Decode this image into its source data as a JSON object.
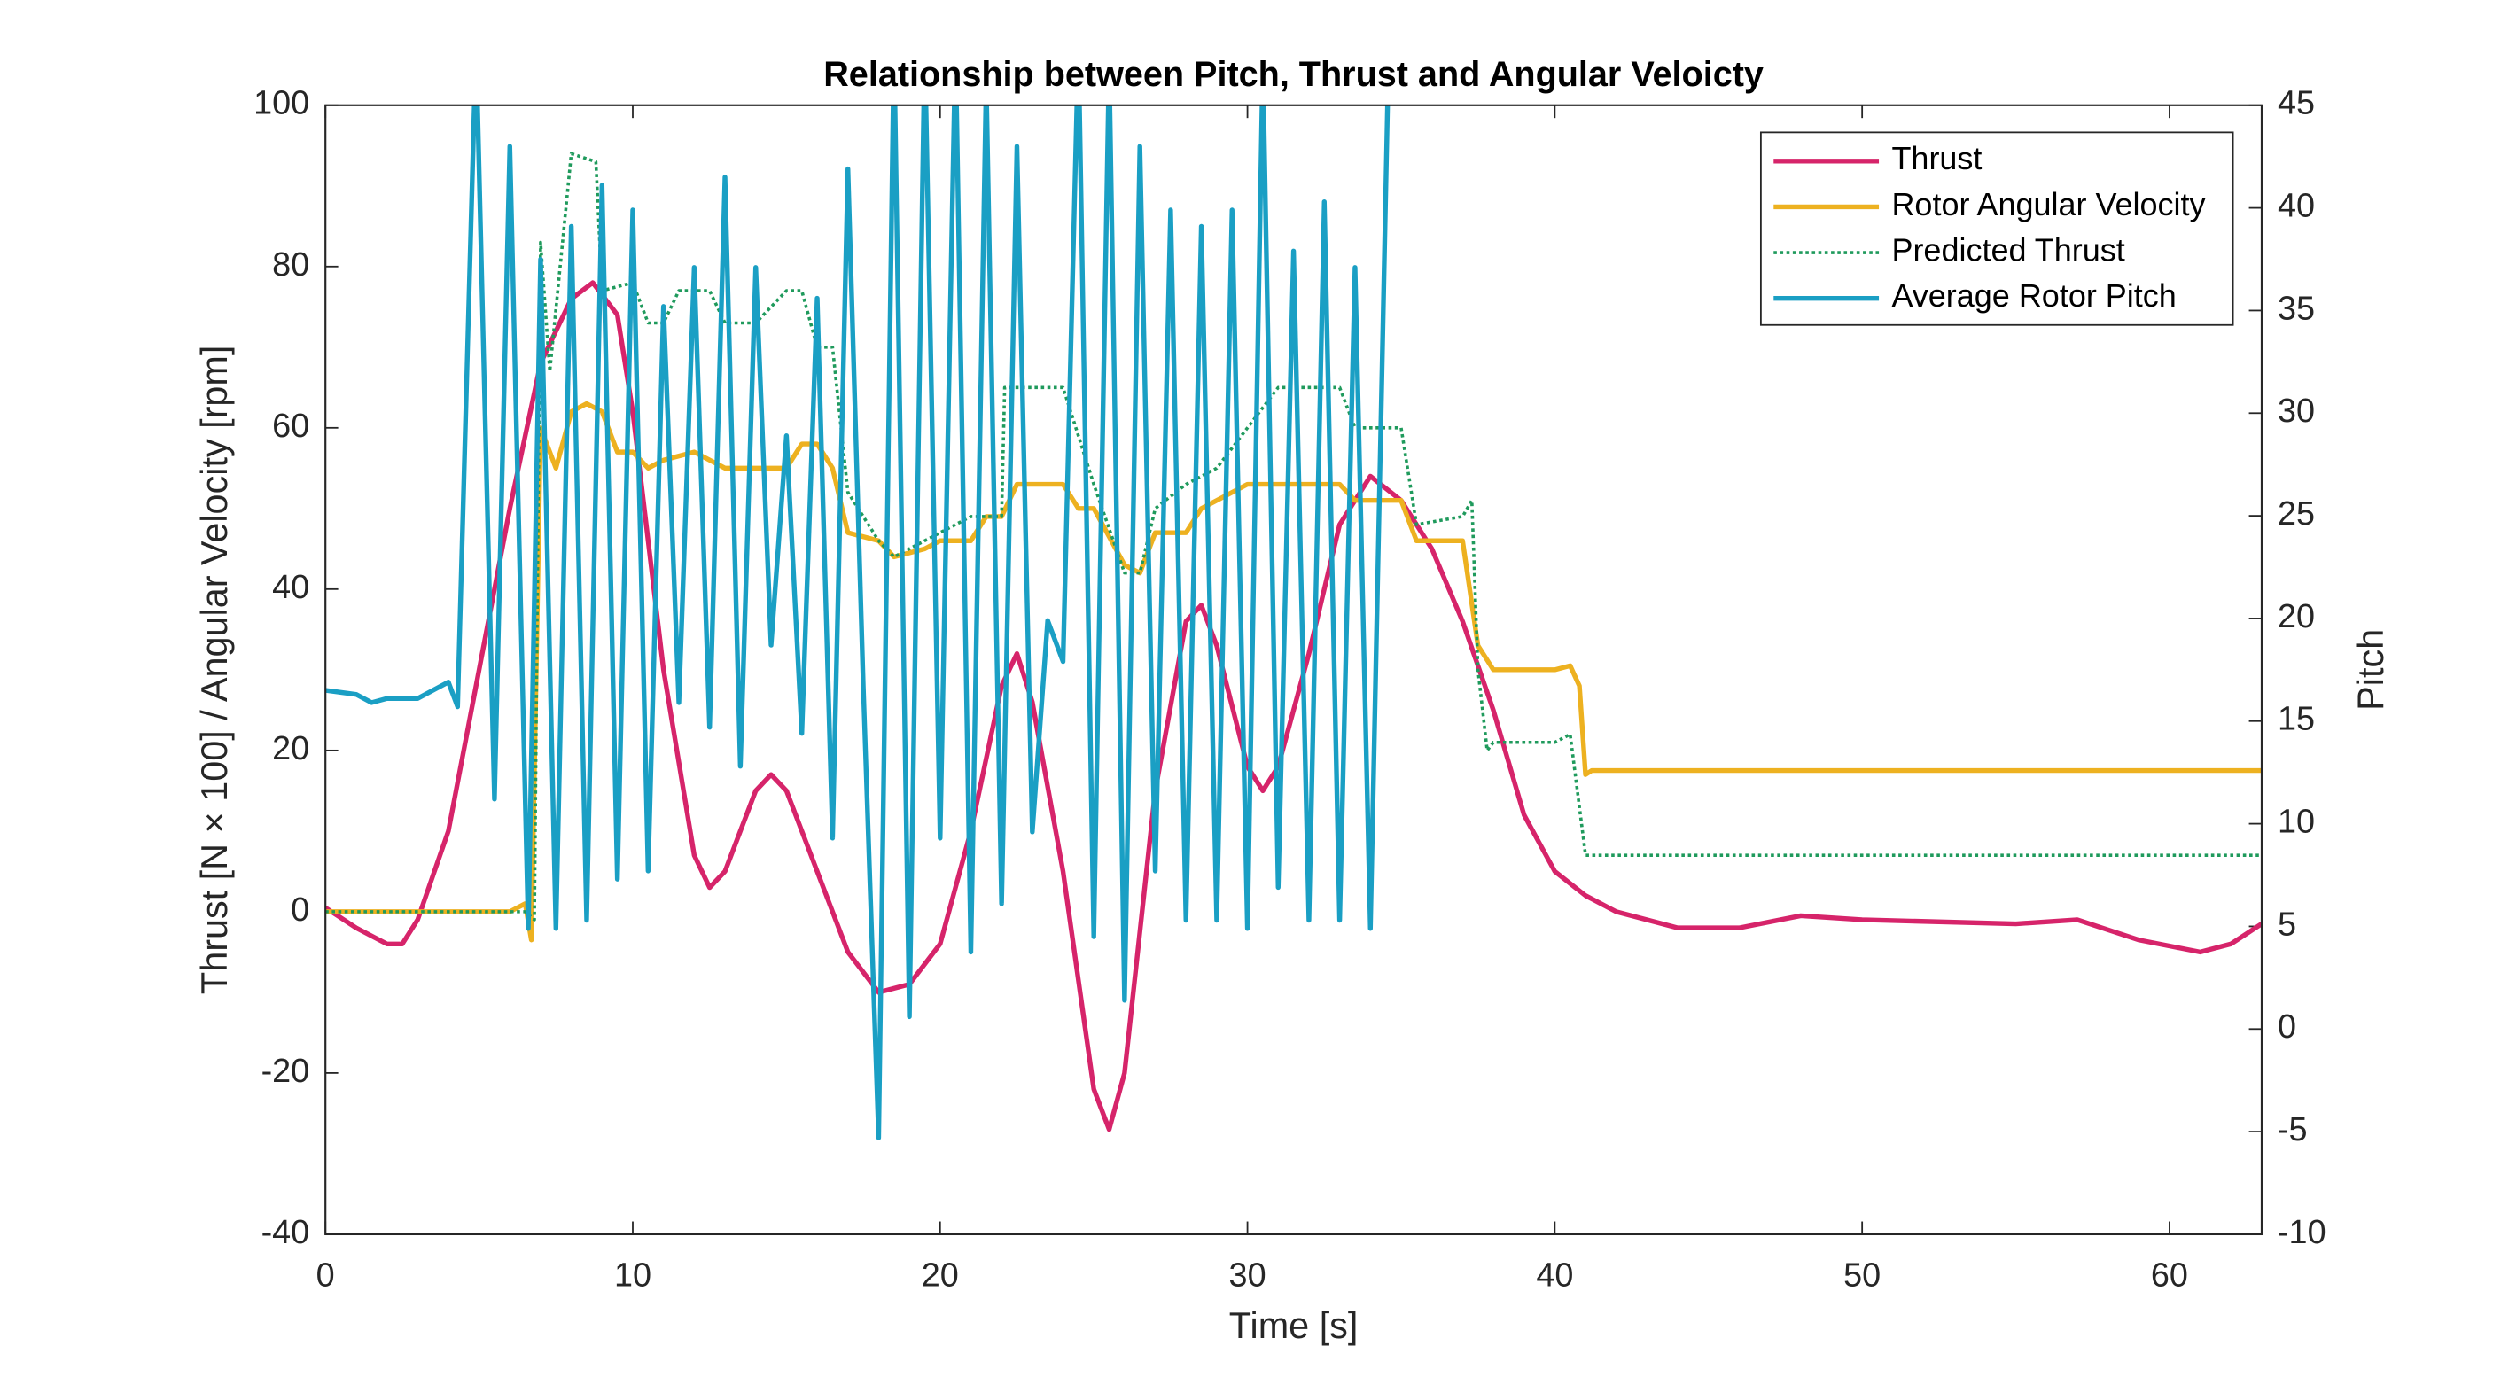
{
  "chart_data": {
    "type": "line",
    "title": "Relationship between Pitch, Thrust and Angular Veloicty",
    "xlabel": "Time [s]",
    "ylabel": "Thrust [N × 100] / Angular Velocity [rpm]",
    "y2label": "Pitch",
    "xlim": [
      0,
      63
    ],
    "xticks": [
      0,
      10,
      20,
      30,
      40,
      50,
      60
    ],
    "ylim": [
      -40,
      100
    ],
    "yticks": [
      -40,
      -20,
      0,
      20,
      40,
      60,
      80,
      100
    ],
    "y2lim": [
      -10,
      45
    ],
    "y2ticks": [
      -10,
      -5,
      0,
      5,
      10,
      15,
      20,
      25,
      30,
      35,
      40,
      45
    ],
    "legend": "northeast",
    "series": [
      {
        "name": "Thrust",
        "color": "#d6246a",
        "axis": "y",
        "x": [
          0,
          1,
          2,
          2.5,
          3,
          4,
          5,
          6,
          7,
          8,
          8.7,
          9.5,
          10,
          11,
          12,
          12.5,
          13,
          14,
          14.5,
          15,
          16,
          17,
          18,
          19,
          20,
          21,
          22,
          22.5,
          23,
          24,
          25,
          25.5,
          26,
          27,
          28,
          28.5,
          29,
          30,
          30.5,
          31,
          32,
          33,
          34,
          35,
          36,
          37,
          38,
          39,
          40,
          41,
          42,
          44,
          46,
          48,
          50,
          55,
          57,
          59,
          61,
          62,
          63
        ],
        "values": [
          0.5,
          -2,
          -4,
          -4,
          -1,
          10,
          30,
          50,
          68,
          76,
          78,
          74,
          62,
          30,
          7,
          3,
          5,
          15,
          17,
          15,
          5,
          -5,
          -10,
          -9,
          -4,
          10,
          28,
          32,
          26,
          5,
          -22,
          -27,
          -20,
          15,
          36,
          38,
          33,
          18,
          15,
          18,
          32,
          48,
          54,
          51,
          45,
          36,
          25,
          12,
          5,
          2,
          0,
          -2,
          -2,
          -0.5,
          -1,
          -1.5,
          -1,
          -3.5,
          -5,
          -4,
          -1.5
        ]
      },
      {
        "name": "Rotor Angular Velocity",
        "color": "#edb120",
        "axis": "y",
        "x": [
          0,
          6,
          6.5,
          6.7,
          7,
          7.5,
          8,
          8.5,
          9,
          9.5,
          10,
          10.5,
          11,
          12,
          13,
          15,
          15.5,
          16,
          16.5,
          17,
          18,
          18.5,
          19.5,
          20,
          21,
          21.5,
          22,
          22.5,
          24,
          24.5,
          25,
          26,
          26.5,
          27,
          28,
          28.5,
          29,
          30,
          33,
          33.5,
          35,
          35.5,
          37,
          37.5,
          38,
          40,
          40.5,
          40.8,
          41,
          41.2,
          63
        ],
        "values": [
          0,
          0,
          1,
          -3.5,
          60,
          55,
          62,
          63,
          62,
          57,
          57,
          55,
          56,
          57,
          55,
          55,
          58,
          58,
          55,
          47,
          46,
          44,
          45,
          46,
          46,
          49,
          49,
          53,
          53,
          50,
          50,
          43,
          42,
          47,
          47,
          50,
          51,
          53,
          53,
          51,
          51,
          46,
          46,
          33,
          30,
          30,
          30.5,
          28,
          17,
          17.5,
          17.5
        ]
      },
      {
        "name": "Predicted Thrust",
        "color": "#1f9a5c",
        "axis": "y",
        "dash": "dotted",
        "x": [
          0,
          6.5,
          6.8,
          7,
          7.3,
          8,
          8.8,
          9,
          10,
          10.5,
          11,
          11.5,
          12.5,
          13,
          14,
          15,
          15.5,
          16,
          16.5,
          17,
          18,
          18.5,
          19,
          20,
          21,
          22,
          22.1,
          24,
          24.5,
          25,
          26,
          26.5,
          27,
          28,
          29,
          30,
          31,
          33,
          33.5,
          35,
          35.5,
          37,
          37.3,
          37.5,
          37.8,
          38,
          40,
          40.5,
          41,
          41.2,
          63
        ],
        "values": [
          0,
          0,
          -1,
          83,
          67,
          94,
          93,
          77,
          78,
          73,
          73,
          77,
          77,
          73,
          73,
          77,
          77,
          70,
          70,
          52,
          46,
          44,
          45,
          47,
          49,
          49,
          65,
          65,
          59,
          53,
          42,
          42,
          50,
          53,
          55,
          60,
          65,
          65,
          60,
          60,
          48,
          49,
          51,
          30,
          20,
          21,
          21,
          22,
          7,
          7,
          7
        ]
      },
      {
        "name": "Average Rotor Pitch",
        "color": "#1a9fc4",
        "axis": "y2",
        "x": [
          0,
          1,
          1.5,
          2,
          3,
          4,
          4.3,
          4.9,
          5.5,
          6,
          6.6,
          7,
          7.5,
          8,
          8.5,
          9,
          9.5,
          10,
          10.5,
          11,
          11.5,
          12,
          12.5,
          13,
          13.5,
          14,
          14.5,
          15,
          15.5,
          16,
          16.5,
          17,
          17.5,
          18,
          18.5,
          19,
          19.5,
          20,
          20.5,
          21,
          21.5,
          22,
          22.5,
          23,
          23.5,
          24,
          24.5,
          25,
          25.5,
          26,
          26.5,
          27,
          27.5,
          28,
          28.5,
          29,
          29.5,
          30,
          30.5,
          31,
          31.5,
          32,
          32.5,
          33,
          33.5,
          34,
          34.6
        ],
        "values": [
          16.5,
          16.3,
          15.9,
          16.1,
          16.1,
          16.9,
          15.7,
          48,
          11.2,
          43,
          4.9,
          37.5,
          4.9,
          39.1,
          5.3,
          41.1,
          7.3,
          39.9,
          7.7,
          35.2,
          15.9,
          37.1,
          14.7,
          41.5,
          12.8,
          37.1,
          18.7,
          28.9,
          14.4,
          35.6,
          9.3,
          41.9,
          16.7,
          -5.3,
          48,
          0.6,
          48,
          9.3,
          48,
          3.75,
          46.2,
          6.1,
          43,
          9.6,
          19.9,
          17.9,
          48,
          4.5,
          47.1,
          1.4,
          43,
          7.7,
          39.9,
          5.3,
          39.1,
          5.3,
          39.9,
          4.9,
          47.1,
          6.9,
          37.9,
          5.3,
          40.3,
          5.3,
          37.1,
          4.9,
          48
        ]
      }
    ]
  }
}
